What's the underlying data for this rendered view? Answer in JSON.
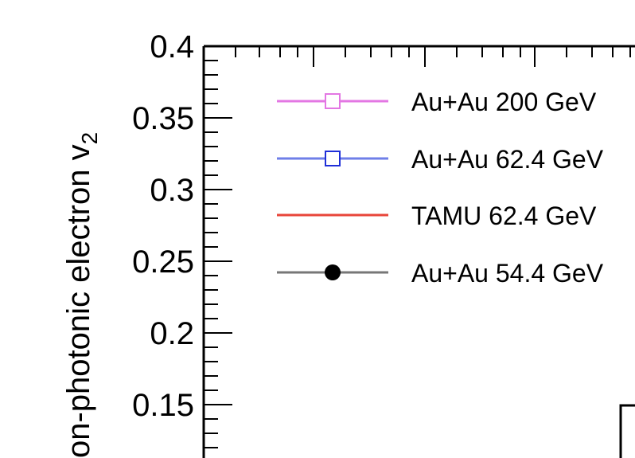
{
  "chart_data": {
    "type": "line",
    "ylabel": "on-photonic electron v",
    "ylabel_subscript": "2",
    "ylim": [
      0.11,
      0.4
    ],
    "y_ticks": [
      "0.4",
      "0.35",
      "0.3",
      "0.25",
      "0.2",
      "0.15"
    ],
    "y_tick_values": [
      0.4,
      0.35,
      0.3,
      0.25,
      0.2,
      0.15
    ],
    "grid": false,
    "legend_position": "top-right",
    "series": [
      {
        "name": "Au+Au 200 GeV",
        "color": "#e377e3",
        "marker": "open-square"
      },
      {
        "name": "Au+Au 62.4 GeV",
        "color": "#6f7fe8",
        "marker": "open-square",
        "marker_color": "#1f2fd8"
      },
      {
        "name": "TAMU 62.4 GeV",
        "color": "#e8453a",
        "marker": "none"
      },
      {
        "name": "Au+Au 54.4 GeV",
        "color": "#777777",
        "marker": "filled-circle",
        "marker_color": "#000000"
      }
    ]
  }
}
